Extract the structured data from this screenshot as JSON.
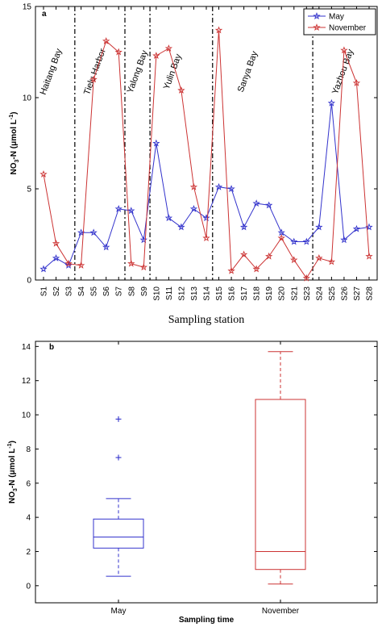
{
  "chart_data": [
    {
      "type": "line",
      "panel_label": "a",
      "ylabel": "NO3-N (μmol L-1)",
      "ylabel_main": "NO",
      "ylabel_sub": "3",
      "ylabel_mid": "-N  (μmol L",
      "ylabel_sup": "-1",
      "ylabel_end": ")",
      "xlabel": "Sampling station",
      "ylim": [
        0,
        15
      ],
      "yticks": [
        "0",
        "5",
        "10",
        "15"
      ],
      "yticks_values": [
        0,
        5,
        10,
        15
      ],
      "categories": [
        "S1",
        "S2",
        "S3",
        "S4",
        "S5",
        "S6",
        "S7",
        "S8",
        "S9",
        "S10",
        "S11",
        "S12",
        "S13",
        "S14",
        "S15",
        "S16",
        "S17",
        "S18",
        "S19",
        "S20",
        "S21",
        "S23",
        "S24",
        "S25",
        "S26",
        "S27",
        "S28"
      ],
      "legend_position": "top-right",
      "series": [
        {
          "name": "May",
          "color": "#3333cc",
          "marker": "star",
          "values": [
            0.6,
            1.2,
            0.8,
            2.6,
            2.6,
            1.8,
            3.9,
            3.8,
            2.2,
            7.5,
            3.4,
            2.9,
            3.9,
            3.4,
            5.1,
            5.0,
            2.9,
            4.2,
            4.1,
            2.6,
            2.1,
            2.1,
            2.9,
            9.7,
            2.2,
            2.8,
            2.9
          ]
        },
        {
          "name": "November",
          "color": "#cc3333",
          "marker": "star",
          "values": [
            5.8,
            2.0,
            0.9,
            0.8,
            11.0,
            13.1,
            12.5,
            0.9,
            0.7,
            12.3,
            12.7,
            10.4,
            5.1,
            2.3,
            13.7,
            0.5,
            1.4,
            0.6,
            1.3,
            2.3,
            1.1,
            0.1,
            1.2,
            1.0,
            12.6,
            10.8,
            1.3
          ]
        }
      ],
      "region_dividers_after_index": [
        2.5,
        6.5,
        8.5,
        13.5,
        21.5
      ],
      "regions": [
        {
          "label": "Haitang Bay",
          "at_index": 0.8
        },
        {
          "label": "Tielu Harbor",
          "at_index": 4.3
        },
        {
          "label": "Yalong Bay",
          "at_index": 7.7
        },
        {
          "label": "Yulin Bay",
          "at_index": 10.5
        },
        {
          "label": "Sanya Bay",
          "at_index": 16.5
        },
        {
          "label": "Yazhou Bay",
          "at_index": 24.1
        }
      ]
    },
    {
      "type": "box",
      "panel_label": "b",
      "ylabel": "NO3-N (μmol L-1)",
      "ylabel_main": "NO",
      "ylabel_sub": "3",
      "ylabel_mid": "-N  (μmol L",
      "ylabel_sup": "-1",
      "ylabel_end": ")",
      "xlabel": "Sampling time",
      "ylim": [
        -1,
        14.3
      ],
      "yticks": [
        "0",
        "2",
        "4",
        "6",
        "8",
        "10",
        "12",
        "14"
      ],
      "yticks_values": [
        0,
        2,
        4,
        6,
        8,
        10,
        12,
        14
      ],
      "categories": [
        "May",
        "November"
      ],
      "boxes": [
        {
          "name": "May",
          "color": "#3333cc",
          "min": 0.55,
          "q1": 2.2,
          "median": 2.85,
          "q3": 3.9,
          "max": 5.1,
          "outliers": [
            7.5,
            9.75
          ]
        },
        {
          "name": "November",
          "color": "#cc3333",
          "min": 0.1,
          "q1": 0.95,
          "median": 2.0,
          "q3": 10.9,
          "max": 13.7,
          "outliers": []
        }
      ]
    }
  ]
}
